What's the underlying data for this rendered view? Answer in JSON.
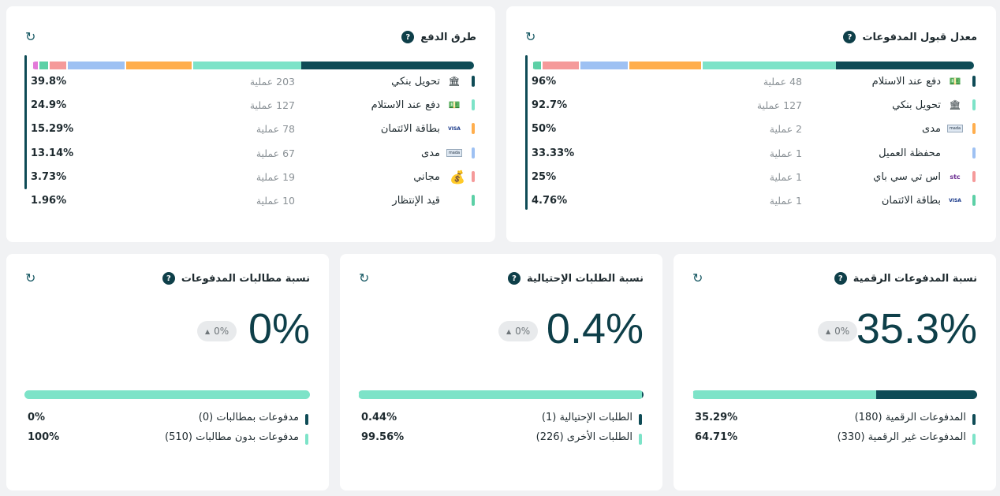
{
  "colors": {
    "dark": "#0e4b56",
    "mint": "#7de3c8",
    "orange": "#ffae4d",
    "blue": "#9ec1f3",
    "pink": "#f59a9a",
    "green": "#5cd0a6",
    "magenta": "#e27ad8",
    "track": "#7de3c8"
  },
  "acceptance": {
    "title": "معدل قبول المدفوعات",
    "help": "?",
    "rows": [
      {
        "label": "دفع عند الاستلام",
        "count": "48 عملية",
        "pct": "96%",
        "icon": "cash-on-delivery-icon",
        "color": "#0e4b56"
      },
      {
        "label": "تحويل بنكي",
        "count": "127 عملية",
        "pct": "92.7%",
        "icon": "bank-icon",
        "color": "#7de3c8"
      },
      {
        "label": "مدى",
        "count": "2 عملية",
        "pct": "50%",
        "icon": "mada-icon",
        "color": "#ffae4d"
      },
      {
        "label": "محفظة العميل",
        "count": "1 عملية",
        "pct": "33.33%",
        "icon": "",
        "color": "#9ec1f3"
      },
      {
        "label": "اس تي سي باي",
        "count": "1 عملية",
        "pct": "25%",
        "icon": "stc-pay-icon",
        "color": "#f59a9a"
      },
      {
        "label": "بطاقة الائتمان",
        "count": "1 عملية",
        "pct": "4.76%",
        "icon": "visa-mastercard-icon",
        "color": "#5cd0a6"
      }
    ]
  },
  "methods": {
    "title": "طرق الدفع",
    "help": "?",
    "rows": [
      {
        "label": "تحويل بنكي",
        "count": "203 عملية",
        "pct": "39.8%",
        "icon": "bank-icon",
        "color": "#0e4b56"
      },
      {
        "label": "دفع عند الاستلام",
        "count": "127 عملية",
        "pct": "24.9%",
        "icon": "cash-on-delivery-icon",
        "color": "#7de3c8"
      },
      {
        "label": "بطاقة الائتمان",
        "count": "78 عملية",
        "pct": "15.29%",
        "icon": "visa-mastercard-icon",
        "color": "#ffae4d"
      },
      {
        "label": "مدى",
        "count": "67 عملية",
        "pct": "13.14%",
        "icon": "mada-icon",
        "color": "#9ec1f3"
      },
      {
        "label": "مجاني",
        "count": "19 عملية",
        "pct": "3.73%",
        "icon": "free-money-hand-icon",
        "color": "#f59a9a"
      },
      {
        "label": "قيد الإنتظار",
        "count": "10 عملية",
        "pct": "1.96%",
        "icon": "",
        "color": "#5cd0a6"
      }
    ]
  },
  "digital": {
    "title": "نسبة المدفوعات الرقمية",
    "help": "?",
    "value": "35.3%",
    "delta": "0%",
    "rows": [
      {
        "label": "المدفوعات الرقمية (180)",
        "pct": "35.29%",
        "color": "#0e4b56"
      },
      {
        "label": "المدفوعات غير الرقمية (330)",
        "pct": "64.71%",
        "color": "#7de3c8"
      }
    ]
  },
  "fraud": {
    "title": "نسبة الطلبات الإحتيالية",
    "help": "?",
    "value": "0.4%",
    "delta": "0%",
    "rows": [
      {
        "label": "الطلبات الإحتيالية (1)",
        "pct": "0.44%",
        "color": "#0e4b56"
      },
      {
        "label": "الطلبات الأخرى (226)",
        "pct": "99.56%",
        "color": "#7de3c8"
      }
    ]
  },
  "claims": {
    "title": "نسبة مطالبات المدفوعات",
    "help": "?",
    "value": "0%",
    "delta": "0%",
    "rows": [
      {
        "label": "مدفوعات بمطالبات (0)",
        "pct": "0%",
        "color": "#0e4b56"
      },
      {
        "label": "مدفوعات بدون مطالبات (510)",
        "pct": "100%",
        "color": "#7de3c8"
      }
    ]
  }
}
